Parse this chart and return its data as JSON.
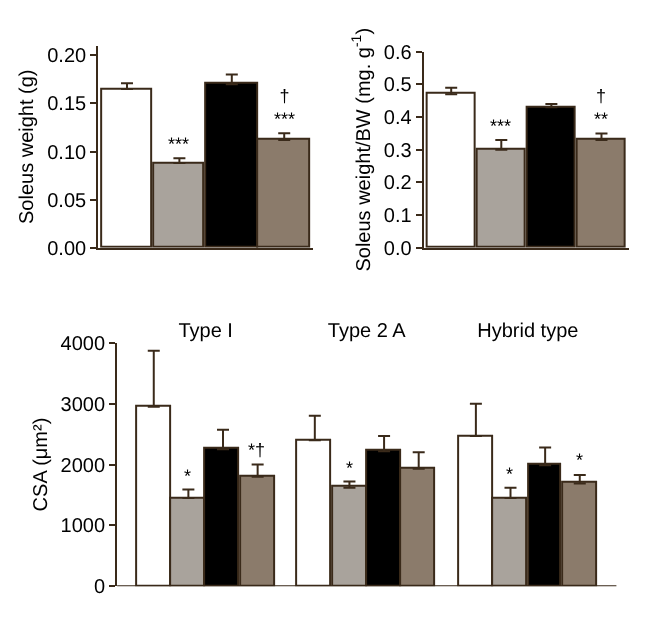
{
  "chart_data": [
    {
      "type": "bar",
      "ylabel": "Soleus weight (g)",
      "categories": [
        null,
        null,
        null,
        null
      ],
      "values": [
        0.165,
        0.088,
        0.17,
        0.112
      ],
      "colors": [
        "#ffffff",
        "#a9a39c",
        "#000000",
        "#8b7b6b"
      ],
      "errors": [
        [
          0.165,
          0.171
        ],
        [
          0.088,
          0.093
        ],
        [
          0.17,
          0.18
        ],
        [
          0.112,
          0.119
        ]
      ],
      "value_labels": [
        null,
        "***",
        null,
        "†\n***"
      ],
      "ylim": [
        0,
        0.21
      ],
      "yticks": [
        {
          "value": 0,
          "label": "0.00"
        },
        0.05,
        {
          "value": 0.1,
          "label": "0.10"
        },
        0.15,
        {
          "value": 0.2,
          "label": "0.20"
        }
      ]
    },
    {
      "type": "bar",
      "ylabel": "Soleus weight/BW (mg. g$^{-1}$)",
      "categories": [
        null,
        null,
        null,
        null
      ],
      "values": [
        0.47,
        0.3,
        0.43,
        0.33
      ],
      "colors": [
        "#ffffff",
        "#a9a39c",
        "#000000",
        "#8b7b6b"
      ],
      "errors": [
        [
          0.47,
          0.49
        ],
        [
          0.3,
          0.33
        ],
        [
          0.43,
          0.44
        ],
        [
          0.33,
          0.35
        ]
      ],
      "value_labels": [
        null,
        "***",
        null,
        "†\n**"
      ],
      "ylim": [
        0,
        0.6
      ],
      "yticks": [
        {
          "value": 0,
          "label": "0.0"
        },
        0.1,
        0.2,
        0.3,
        0.4,
        0.5,
        0.6
      ]
    },
    {
      "type": "bar",
      "ylabel": "CSA (μm²)",
      "categories": [
        "Type I",
        "Type 2 A",
        "Hybrid type"
      ],
      "series": [
        {
          "color": "#ffffff",
          "values": [
            2950,
            2400,
            2470
          ],
          "errors": [
            [
              2950,
              3870
            ],
            [
              2400,
              2800
            ],
            [
              2470,
              3000
            ]
          ],
          "value_labels": [
            null,
            null,
            null
          ]
        },
        {
          "color": "#a9a39c",
          "values": [
            1450,
            1620,
            1450
          ],
          "errors": [
            [
              1450,
              1590
            ],
            [
              1620,
              1720
            ],
            [
              1450,
              1620
            ]
          ],
          "value_labels": [
            "*",
            "*",
            "*"
          ]
        },
        {
          "color": "#000000",
          "values": [
            2250,
            2220,
            1990
          ],
          "errors": [
            [
              2250,
              2570
            ],
            [
              2220,
              2470
            ],
            [
              1990,
              2280
            ]
          ],
          "value_labels": [
            null,
            null,
            null
          ]
        },
        {
          "color": "#8b7b6b",
          "values": [
            1800,
            1930,
            1690
          ],
          "errors": [
            [
              1800,
              2000
            ],
            [
              1930,
              2200
            ],
            [
              1690,
              1830
            ]
          ],
          "value_labels": [
            "*†",
            null,
            "*"
          ]
        }
      ],
      "ylim": [
        0,
        4000
      ],
      "yticks": [
        0,
        1000,
        2000,
        3000,
        4000
      ]
    }
  ]
}
